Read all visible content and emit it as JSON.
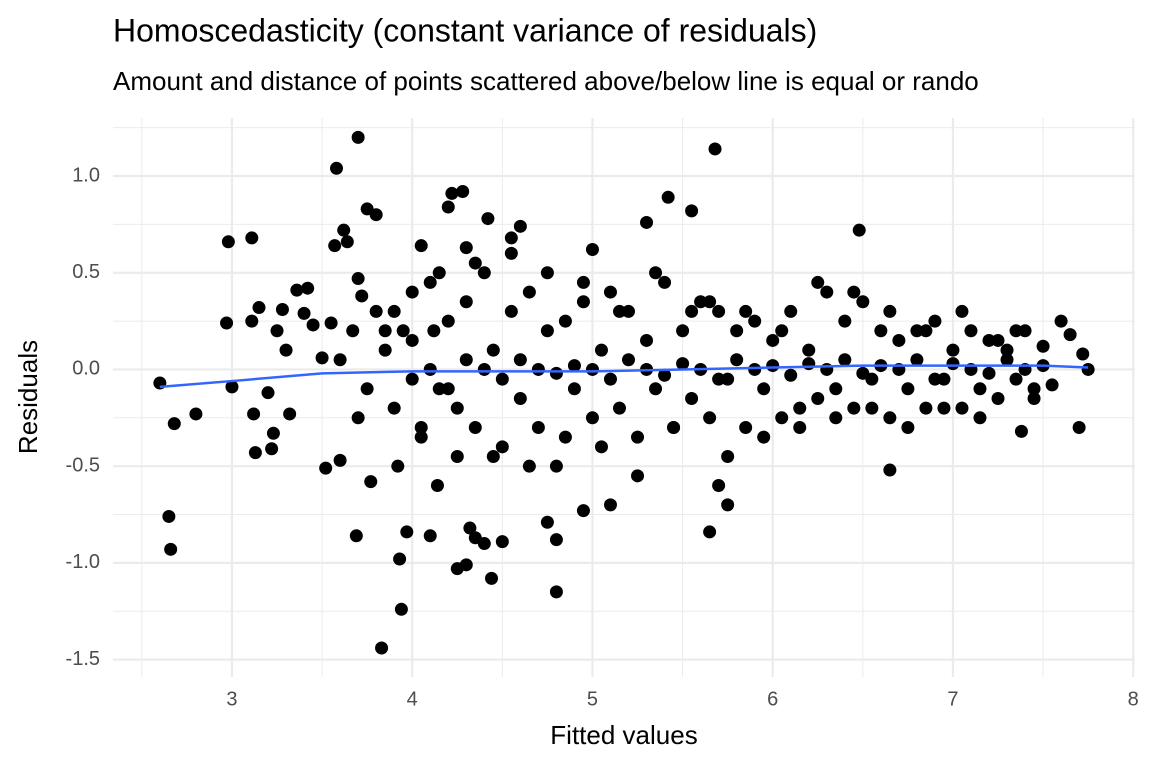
{
  "chart_data": {
    "type": "scatter",
    "title": "Homoscedasticity (constant variance of residuals)",
    "subtitle": "Amount and distance of points scattered above/below line is equal or rando",
    "x_label": "Fitted values",
    "y_label": "Residuals",
    "xlim": [
      2.34,
      8.01
    ],
    "ylim": [
      -1.59,
      1.3
    ],
    "xticks": [
      3,
      4,
      5,
      6,
      7,
      8
    ],
    "yticks": [
      {
        "value": 1,
        "label": "1.0"
      },
      {
        "value": 0.5,
        "label": "0.5"
      },
      {
        "value": 0,
        "label": "0.0"
      },
      {
        "value": -0.5,
        "label": "-0.5"
      },
      {
        "value": -1,
        "label": "-1.0"
      },
      {
        "value": -1.5,
        "label": "-1.5"
      }
    ],
    "grid": true,
    "minor_grid": true,
    "points": {
      "color": "#000000",
      "x": [
        2.6,
        2.65,
        2.66,
        2.68,
        2.8,
        2.97,
        2.98,
        3.0,
        3.11,
        3.11,
        3.12,
        3.13,
        3.15,
        3.2,
        3.22,
        3.23,
        3.25,
        3.28,
        3.3,
        3.32,
        3.36,
        3.4,
        3.42,
        3.45,
        3.5,
        3.52,
        3.55,
        3.57,
        3.58,
        3.6,
        3.62,
        3.64,
        3.67,
        3.69,
        3.7,
        3.7,
        3.72,
        3.75,
        3.77,
        3.8,
        3.83,
        3.85,
        3.9,
        3.92,
        3.93,
        3.94,
        3.97,
        4.0,
        4.05,
        4.1,
        4.12,
        4.14,
        4.2,
        4.22,
        4.25,
        4.28,
        4.3,
        4.3,
        4.32,
        4.35,
        4.4,
        4.42,
        4.44,
        4.5,
        4.55,
        4.6,
        4.75,
        4.8,
        4.8,
        4.95,
        5.0,
        5.1,
        5.3,
        5.42,
        5.55,
        5.65,
        5.68,
        5.7,
        5.75,
        6.48,
        6.65,
        7.38,
        7.7,
        7.75,
        7.72,
        7.6,
        7.65,
        3.6,
        3.7,
        3.8,
        3.9,
        4.0,
        4.05,
        4.1,
        4.15,
        4.2,
        4.25,
        4.3,
        4.35,
        4.4,
        4.45,
        4.5,
        4.55,
        4.6,
        4.65,
        4.7,
        4.75,
        4.8,
        4.85,
        4.9,
        4.95,
        5.0,
        5.05,
        5.1,
        5.15,
        5.2,
        5.25,
        5.3,
        5.35,
        5.4,
        5.45,
        5.5,
        5.55,
        5.6,
        5.65,
        5.7,
        5.75,
        5.8,
        5.85,
        5.9,
        5.95,
        6.0,
        6.05,
        6.1,
        6.15,
        6.2,
        6.25,
        6.3,
        6.35,
        6.4,
        6.45,
        6.5,
        6.55,
        6.6,
        6.65,
        6.7,
        6.75,
        6.8,
        6.85,
        6.9,
        6.95,
        7.0,
        7.05,
        7.1,
        7.15,
        7.2,
        7.25,
        7.3,
        7.35,
        7.4,
        7.45,
        7.5,
        7.55,
        3.75,
        3.85,
        3.95,
        4.05,
        4.15,
        4.25,
        4.35,
        4.45,
        4.55,
        4.65,
        4.75,
        4.85,
        4.95,
        5.05,
        5.15,
        5.25,
        5.35,
        5.45,
        5.55,
        5.65,
        5.75,
        5.85,
        5.95,
        6.05,
        6.15,
        6.25,
        6.35,
        6.45,
        6.55,
        6.65,
        6.75,
        6.85,
        6.95,
        7.05,
        7.15,
        7.25,
        7.35,
        7.45,
        4.0,
        4.1,
        4.2,
        4.3,
        4.4,
        4.5,
        4.6,
        4.7,
        4.8,
        4.9,
        5.0,
        5.1,
        5.2,
        5.3,
        5.4,
        5.5,
        5.6,
        5.7,
        5.8,
        5.9,
        6.0,
        6.1,
        6.2,
        6.3,
        6.4,
        6.5,
        6.6,
        6.7,
        6.8,
        6.9,
        7.0,
        7.1,
        7.2,
        7.3,
        7.4,
        7.5
      ],
      "y": [
        -0.07,
        -0.76,
        -0.93,
        -0.28,
        -0.23,
        0.24,
        0.66,
        -0.09,
        0.68,
        0.25,
        -0.23,
        -0.43,
        0.32,
        -0.12,
        -0.41,
        -0.33,
        0.2,
        0.31,
        0.1,
        -0.23,
        0.41,
        0.29,
        0.42,
        0.23,
        0.06,
        -0.51,
        0.24,
        0.64,
        1.04,
        -0.47,
        0.72,
        0.66,
        0.2,
        -0.86,
        1.2,
        0.47,
        0.38,
        0.83,
        -0.58,
        0.8,
        -1.44,
        0.2,
        0.3,
        -0.5,
        -0.98,
        -1.24,
        -0.84,
        0.4,
        0.64,
        -0.86,
        0.2,
        -0.6,
        0.84,
        0.91,
        -1.03,
        0.92,
        -1.01,
        0.63,
        -0.82,
        -0.87,
        -0.9,
        0.78,
        -1.08,
        -0.89,
        0.68,
        0.74,
        -0.79,
        -0.88,
        -1.15,
        -0.73,
        0.62,
        -0.7,
        0.76,
        0.89,
        0.82,
        -0.84,
        1.14,
        -0.6,
        -0.7,
        0.72,
        -0.52,
        -0.32,
        -0.3,
        0.0,
        0.08,
        0.25,
        0.18,
        0.05,
        -0.25,
        0.3,
        -0.2,
        0.15,
        -0.35,
        0.45,
        -0.1,
        0.25,
        -0.45,
        0.35,
        -0.3,
        0.5,
        0.1,
        -0.4,
        0.3,
        -0.15,
        0.4,
        -0.3,
        0.2,
        -0.5,
        0.25,
        -0.1,
        0.35,
        -0.25,
        0.1,
        0.4,
        -0.2,
        0.3,
        -0.35,
        0.15,
        -0.1,
        0.45,
        -0.3,
        0.2,
        -0.15,
        0.35,
        -0.25,
        0.3,
        -0.05,
        0.2,
        -0.3,
        0.25,
        -0.1,
        0.15,
        -0.25,
        0.3,
        -0.2,
        0.1,
        -0.15,
        0.4,
        -0.1,
        0.25,
        -0.2,
        0.35,
        -0.05,
        0.2,
        -0.25,
        0.15,
        -0.1,
        0.2,
        -0.2,
        0.25,
        -0.05,
        0.1,
        -0.2,
        0.2,
        -0.1,
        0.15,
        -0.15,
        0.1,
        -0.05,
        0.2,
        -0.1,
        0.12,
        -0.08,
        -0.1,
        0.1,
        0.2,
        -0.3,
        0.5,
        -0.2,
        0.55,
        -0.45,
        0.6,
        -0.5,
        0.5,
        -0.35,
        0.45,
        -0.4,
        0.3,
        -0.55,
        0.5,
        -0.3,
        0.3,
        0.35,
        -0.45,
        0.3,
        -0.35,
        0.2,
        -0.3,
        0.45,
        -0.25,
        0.4,
        -0.2,
        0.3,
        -0.3,
        0.2,
        -0.2,
        0.3,
        -0.25,
        0.15,
        0.2,
        -0.15,
        -0.05,
        0.0,
        -0.1,
        0.05,
        0.0,
        -0.05,
        0.05,
        0.0,
        -0.02,
        0.02,
        0.0,
        -0.05,
        0.05,
        0.0,
        -0.03,
        0.03,
        0.0,
        -0.05,
        0.05,
        0.0,
        0.02,
        -0.03,
        0.03,
        0.0,
        0.05,
        -0.02,
        0.02,
        0.0,
        0.05,
        -0.05,
        0.03,
        0.0,
        -0.02,
        0.05,
        0.0,
        0.02
      ]
    },
    "smooth": {
      "color": "#3366ff",
      "x": [
        2.6,
        3.0,
        3.5,
        4.0,
        4.5,
        5.0,
        5.5,
        6.0,
        6.5,
        7.0,
        7.5,
        7.75
      ],
      "y": [
        -0.09,
        -0.06,
        -0.02,
        -0.01,
        -0.01,
        -0.01,
        0.0,
        0.01,
        0.02,
        0.02,
        0.02,
        0.01
      ]
    }
  }
}
